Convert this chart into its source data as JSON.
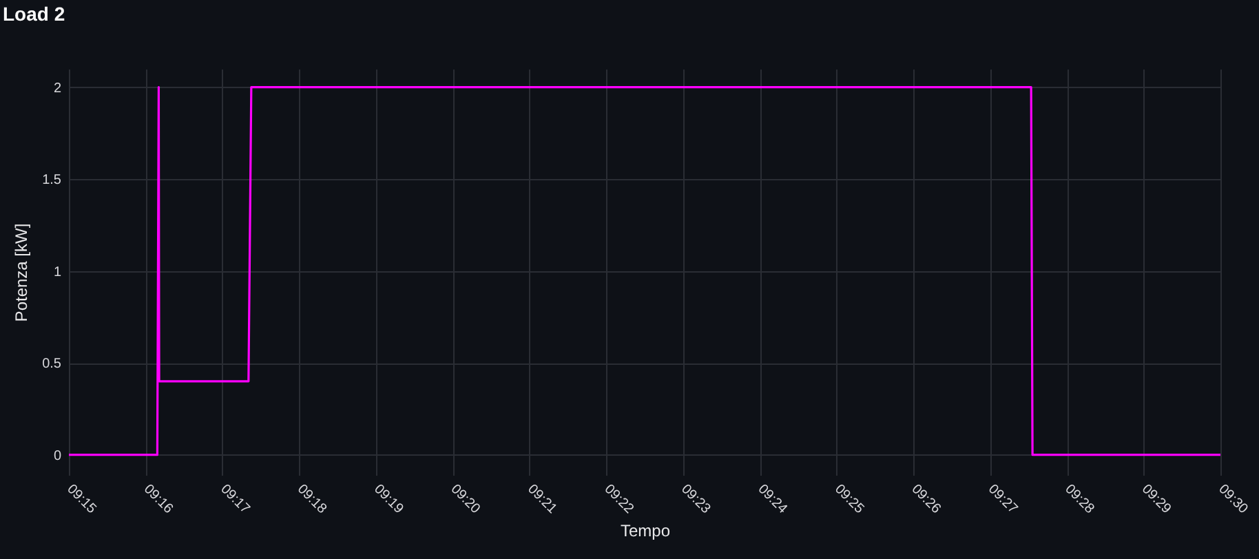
{
  "chart_data": {
    "type": "line",
    "title": "Load 2",
    "xlabel": "Tempo",
    "ylabel": "Potenza [kW]",
    "x": [
      9.25,
      9.2692,
      9.2695,
      9.2696,
      9.289,
      9.2896,
      9.4589,
      9.4592,
      9.5
    ],
    "series": [
      {
        "color": "#ff00ff",
        "values": [
          0,
          0,
          2,
          0.4,
          0.4,
          2,
          2,
          0,
          0
        ]
      }
    ],
    "xlim": [
      9.25,
      9.5
    ],
    "ylim": [
      -0.11,
      2.1
    ],
    "xticks": [
      {
        "value": 9.25,
        "label": "09:15"
      },
      {
        "value": 9.266666666666667,
        "label": "09:16"
      },
      {
        "value": 9.283333333333333,
        "label": "09:17"
      },
      {
        "value": 9.3,
        "label": "09:18"
      },
      {
        "value": 9.316666666666666,
        "label": "09:19"
      },
      {
        "value": 9.333333333333334,
        "label": "09:20"
      },
      {
        "value": 9.35,
        "label": "09:21"
      },
      {
        "value": 9.366666666666667,
        "label": "09:22"
      },
      {
        "value": 9.383333333333333,
        "label": "09:23"
      },
      {
        "value": 9.4,
        "label": "09:24"
      },
      {
        "value": 9.416666666666666,
        "label": "09:25"
      },
      {
        "value": 9.433333333333334,
        "label": "09:26"
      },
      {
        "value": 9.45,
        "label": "09:27"
      },
      {
        "value": 9.466666666666667,
        "label": "09:28"
      },
      {
        "value": 9.483333333333333,
        "label": "09:29"
      },
      {
        "value": 9.5,
        "label": "09:30"
      }
    ],
    "yticks": [
      0,
      0.5,
      1,
      1.5,
      2
    ],
    "grid": true
  }
}
